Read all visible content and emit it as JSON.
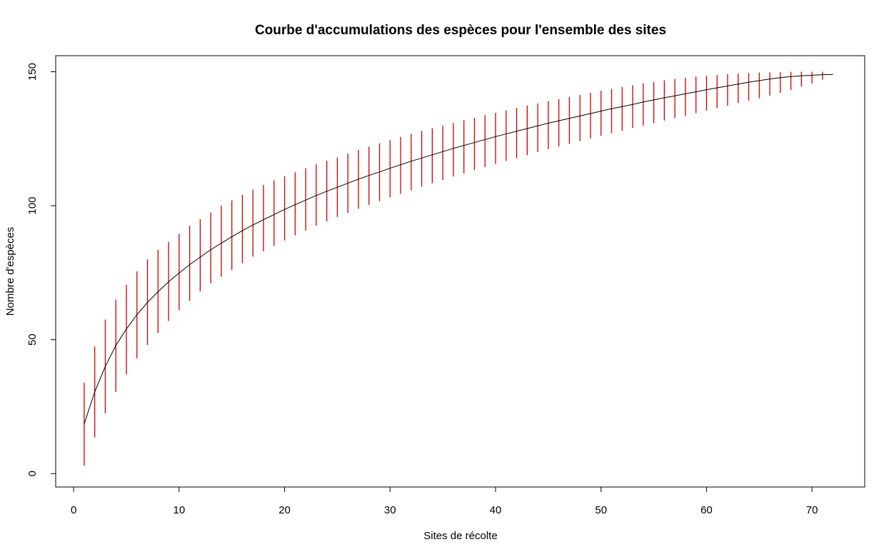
{
  "chart_data": {
    "type": "line",
    "title": "Courbe d'accumulations des espèces pour l'ensemble des sites",
    "xlabel": "Sites de récolte",
    "ylabel": "Nombre d'espèces",
    "xlim": [
      -1.7,
      75.0
    ],
    "ylim": [
      -5,
      156
    ],
    "x_ticks": [
      0,
      10,
      20,
      30,
      40,
      50,
      60,
      70
    ],
    "y_ticks": [
      0,
      50,
      100,
      150
    ],
    "line_color": "#000000",
    "error_bar_color": "#cc0000",
    "grid": false,
    "legend": "none",
    "series": [
      {
        "x": [
          1,
          2,
          3,
          4,
          5,
          6,
          7,
          8,
          9,
          10,
          11,
          12,
          13,
          14,
          15,
          16,
          17,
          18,
          19,
          20,
          21,
          22,
          23,
          24,
          25,
          26,
          27,
          28,
          29,
          30,
          31,
          32,
          33,
          34,
          35,
          36,
          37,
          38,
          39,
          40,
          41,
          42,
          43,
          44,
          45,
          46,
          47,
          48,
          49,
          50,
          51,
          52,
          53,
          54,
          55,
          56,
          57,
          58,
          59,
          60,
          61,
          62,
          63,
          64,
          65,
          66,
          67,
          68,
          69,
          70,
          71,
          72
        ],
        "y": [
          18.5,
          30.5,
          40.0,
          47.8,
          54.0,
          59.3,
          63.9,
          67.9,
          71.6,
          74.9,
          78.0,
          80.8,
          83.6,
          86.0,
          88.4,
          90.7,
          92.8,
          94.8,
          96.7,
          98.6,
          100.4,
          102.1,
          103.8,
          105.4,
          106.9,
          108.4,
          109.9,
          111.3,
          112.6,
          114.0,
          115.3,
          116.6,
          117.8,
          119.0,
          120.2,
          121.4,
          122.5,
          123.6,
          124.7,
          125.8,
          126.8,
          127.8,
          128.8,
          129.8,
          130.8,
          131.7,
          132.6,
          133.5,
          134.4,
          135.3,
          136.2,
          137.0,
          137.8,
          138.7,
          139.5,
          140.3,
          141.0,
          141.8,
          142.5,
          143.3,
          144.0,
          144.7,
          145.4,
          146.1,
          146.7,
          147.3,
          147.8,
          148.2,
          148.5,
          148.7,
          148.9,
          149.0
        ],
        "lower": [
          3.0,
          13.5,
          22.5,
          30.5,
          37.0,
          43.0,
          48.0,
          52.5,
          57.0,
          61.0,
          64.5,
          68.0,
          71.0,
          73.5,
          76.0,
          78.5,
          81.0,
          83.0,
          85.0,
          87.0,
          89.0,
          90.7,
          92.5,
          94.2,
          95.8,
          97.3,
          98.8,
          100.3,
          101.7,
          103.1,
          104.5,
          105.8,
          107.1,
          108.4,
          109.6,
          110.9,
          112.1,
          113.3,
          114.4,
          115.6,
          116.7,
          117.8,
          118.9,
          120.0,
          121.1,
          122.1,
          123.1,
          124.1,
          125.1,
          126.1,
          127.1,
          128.0,
          129.0,
          129.9,
          130.8,
          131.8,
          132.7,
          133.6,
          134.6,
          135.5,
          136.4,
          137.3,
          138.3,
          139.2,
          140.1,
          141.1,
          142.1,
          143.2,
          144.4,
          145.6,
          147.0,
          149.0
        ],
        "upper": [
          34.0,
          47.5,
          57.5,
          65.0,
          70.5,
          75.5,
          80.0,
          83.5,
          86.5,
          89.5,
          92.5,
          95.0,
          97.5,
          100.0,
          102.0,
          104.0,
          106.0,
          107.8,
          109.5,
          111.0,
          112.5,
          114.0,
          115.5,
          116.8,
          118.0,
          119.5,
          120.8,
          122.0,
          123.3,
          124.5,
          125.7,
          126.8,
          127.9,
          128.9,
          129.9,
          130.9,
          131.9,
          132.8,
          133.8,
          134.7,
          135.6,
          136.5,
          137.4,
          138.2,
          139.0,
          139.8,
          140.6,
          141.4,
          142.2,
          142.9,
          143.6,
          144.3,
          145.0,
          145.6,
          146.2,
          146.8,
          147.3,
          147.8,
          148.2,
          148.5,
          148.8,
          149.1,
          149.3,
          149.5,
          149.7,
          149.8,
          149.9,
          150.0,
          150.0,
          150.0,
          150.0,
          149.0
        ]
      }
    ]
  }
}
